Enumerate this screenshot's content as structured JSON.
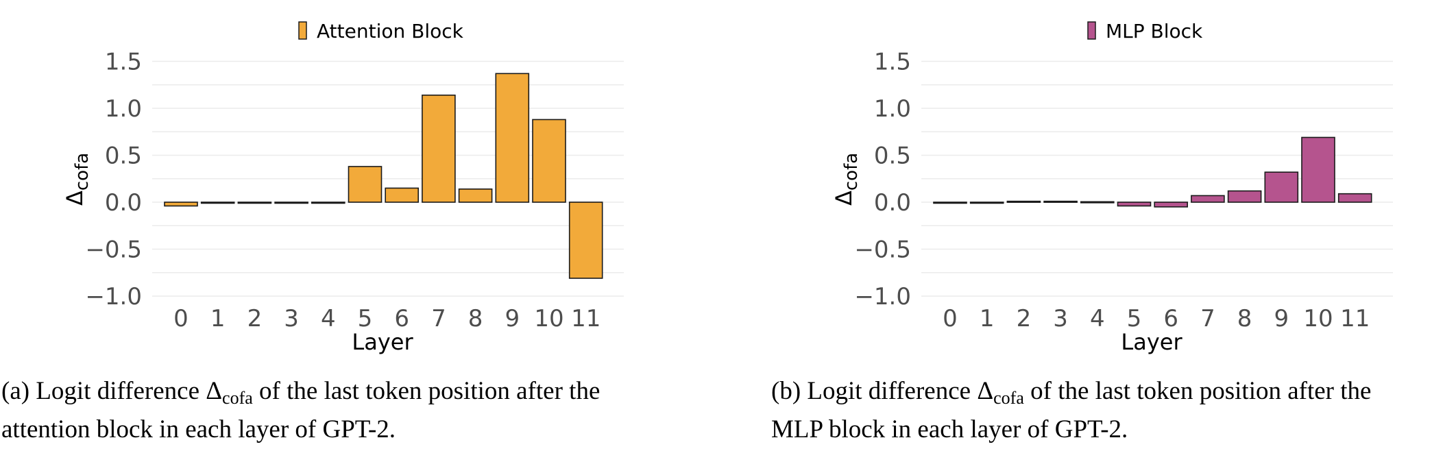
{
  "chart_data": [
    {
      "type": "bar",
      "legend": "Attention Block",
      "color": "#F2AA3A",
      "xlabel": "Layer",
      "ylabel": "Δ",
      "ylabel_sub": "cofa",
      "categories": [
        "0",
        "1",
        "2",
        "3",
        "4",
        "5",
        "6",
        "7",
        "8",
        "9",
        "10",
        "11"
      ],
      "values": [
        -0.04,
        -0.005,
        -0.01,
        -0.01,
        -0.005,
        0.38,
        0.15,
        1.14,
        0.14,
        1.37,
        0.88,
        -0.81
      ],
      "ylim": [
        -1.0,
        1.5
      ],
      "yticks": [
        "1.5",
        "1.0",
        "0.5",
        "0.0",
        "−0.5",
        "−1.0"
      ],
      "grid": true,
      "legend_position": "top"
    },
    {
      "type": "bar",
      "legend": "MLP Block",
      "color": "#B5548E",
      "xlabel": "Layer",
      "ylabel": "Δ",
      "ylabel_sub": "cofa",
      "categories": [
        "0",
        "1",
        "2",
        "3",
        "4",
        "5",
        "6",
        "7",
        "8",
        "9",
        "10",
        "11"
      ],
      "values": [
        -0.01,
        -0.005,
        0.01,
        0.01,
        0.005,
        -0.04,
        -0.05,
        0.07,
        0.12,
        0.32,
        0.69,
        0.09
      ],
      "ylim": [
        -1.0,
        1.5
      ],
      "yticks": [
        "1.5",
        "1.0",
        "0.5",
        "0.0",
        "−0.5",
        "−1.0"
      ],
      "grid": true,
      "legend_position": "top"
    }
  ],
  "captions": [
    {
      "label": "(a) Logit difference Δ",
      "sub": "cofa",
      "line1_rest": " of the last token position after the",
      "line2": "attention block in each layer of GPT-2."
    },
    {
      "label": "(b) Logit difference Δ",
      "sub": "cofa",
      "line1_rest": " of the last token position after the",
      "line2": "MLP block in each layer of GPT-2."
    }
  ]
}
